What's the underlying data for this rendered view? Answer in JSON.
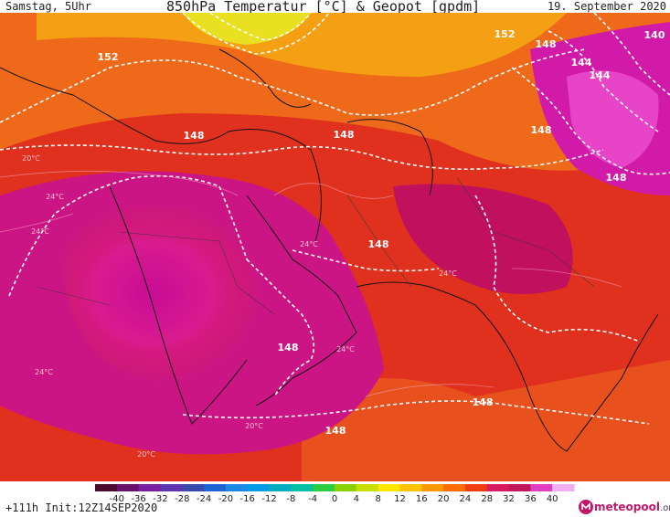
{
  "header": {
    "left": "Samstag, 5Uhr",
    "title": "850hPa Temperatur [°C] & Geopot [gpdm]",
    "right": "19. September 2020"
  },
  "map": {
    "contour_labels": [
      {
        "text": "152"
      },
      {
        "text": "152"
      },
      {
        "text": "148"
      },
      {
        "text": "148"
      },
      {
        "text": "148"
      },
      {
        "text": "148"
      },
      {
        "text": "148"
      },
      {
        "text": "148"
      },
      {
        "text": "148"
      },
      {
        "text": "148"
      },
      {
        "text": "144"
      },
      {
        "text": "144"
      },
      {
        "text": "140"
      }
    ],
    "temp_labels": [
      {
        "text": "24°C"
      },
      {
        "text": "24°C"
      },
      {
        "text": "24°C"
      },
      {
        "text": "24°C"
      },
      {
        "text": "24°C"
      },
      {
        "text": "24°C"
      },
      {
        "text": "20°C"
      },
      {
        "text": "20°C"
      },
      {
        "text": "20°C"
      }
    ]
  },
  "legend": {
    "ticks": [
      "-40",
      "-36",
      "-32",
      "-28",
      "-24",
      "-20",
      "-16",
      "-12",
      "-8",
      "-4",
      "0",
      "4",
      "8",
      "12",
      "16",
      "20",
      "24",
      "28",
      "32",
      "36",
      "40"
    ],
    "colors": [
      "#4b0a2e",
      "#6a0f6e",
      "#7b1fa2",
      "#5e35b1",
      "#3949ab",
      "#1e63d6",
      "#1e88e5",
      "#039be5",
      "#00acc1",
      "#00bfa5",
      "#2ecc40",
      "#8bd000",
      "#c8e000",
      "#ffe600",
      "#ffc400",
      "#ff9800",
      "#ff6d00",
      "#f03d0e",
      "#d81b60",
      "#c2185b",
      "#e040c0",
      "#f0b0f0"
    ]
  },
  "footer": {
    "run": "+111h Init:12Z14SEP2020"
  },
  "brand": {
    "name": "meteopool",
    "domain": ".org"
  }
}
